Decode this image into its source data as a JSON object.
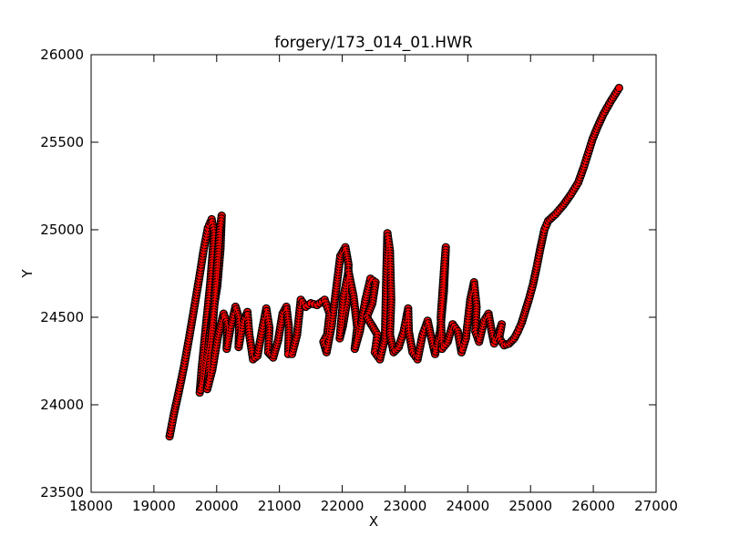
{
  "chart_data": {
    "type": "scatter",
    "title": "forgery/173_014_01.HWR",
    "xlabel": "X",
    "ylabel": "Y",
    "xlim": [
      18000,
      27000
    ],
    "ylim": [
      23500,
      26000
    ],
    "xticks": [
      "18000",
      "19000",
      "20000",
      "21000",
      "22000",
      "23000",
      "24000",
      "25000",
      "26000",
      "27000"
    ],
    "yticks": [
      "23500",
      "24000",
      "24500",
      "25000",
      "25500",
      "26000"
    ],
    "grid": false,
    "legend": "none",
    "colors": {
      "marker_fill": "#ff0000",
      "marker_edge": "#000000",
      "line": "#ff0000"
    },
    "series": [
      {
        "points": [
          [
            19250,
            23820
          ],
          [
            19320,
            23950
          ],
          [
            19400,
            24080
          ],
          [
            19480,
            24220
          ],
          [
            19560,
            24380
          ],
          [
            19640,
            24550
          ],
          [
            19720,
            24720
          ],
          [
            19790,
            24880
          ],
          [
            19860,
            25010
          ],
          [
            19920,
            25060
          ],
          [
            19960,
            24980
          ],
          [
            19900,
            24700
          ],
          [
            19820,
            24420
          ],
          [
            19760,
            24200
          ],
          [
            19730,
            24070
          ],
          [
            19790,
            24150
          ],
          [
            19860,
            24330
          ],
          [
            19930,
            24500
          ],
          [
            20010,
            24680
          ],
          [
            20060,
            24890
          ],
          [
            20080,
            25080
          ],
          [
            20050,
            25000
          ],
          [
            19990,
            24700
          ],
          [
            19930,
            24420
          ],
          [
            19870,
            24180
          ],
          [
            19850,
            24090
          ],
          [
            19930,
            24200
          ],
          [
            20020,
            24390
          ],
          [
            20110,
            24520
          ],
          [
            20170,
            24460
          ],
          [
            20160,
            24320
          ],
          [
            20220,
            24440
          ],
          [
            20300,
            24560
          ],
          [
            20360,
            24490
          ],
          [
            20350,
            24330
          ],
          [
            20420,
            24470
          ],
          [
            20490,
            24530
          ],
          [
            20520,
            24400
          ],
          [
            20580,
            24260
          ],
          [
            20650,
            24280
          ],
          [
            20720,
            24420
          ],
          [
            20790,
            24550
          ],
          [
            20840,
            24440
          ],
          [
            20820,
            24300
          ],
          [
            20900,
            24270
          ],
          [
            20980,
            24370
          ],
          [
            21050,
            24520
          ],
          [
            21110,
            24560
          ],
          [
            21150,
            24440
          ],
          [
            21140,
            24290
          ],
          [
            21200,
            24290
          ],
          [
            21280,
            24400
          ],
          [
            21340,
            24600
          ],
          [
            21420,
            24560
          ],
          [
            21500,
            24580
          ],
          [
            21600,
            24570
          ],
          [
            21720,
            24600
          ],
          [
            21800,
            24520
          ],
          [
            21760,
            24400
          ],
          [
            21700,
            24360
          ],
          [
            21750,
            24300
          ],
          [
            21830,
            24450
          ],
          [
            21900,
            24650
          ],
          [
            21970,
            24850
          ],
          [
            22050,
            24900
          ],
          [
            22100,
            24800
          ],
          [
            22080,
            24600
          ],
          [
            22010,
            24450
          ],
          [
            21960,
            24380
          ],
          [
            22020,
            24620
          ],
          [
            22100,
            24760
          ],
          [
            22180,
            24620
          ],
          [
            22240,
            24440
          ],
          [
            22200,
            24320
          ],
          [
            22280,
            24420
          ],
          [
            22370,
            24600
          ],
          [
            22450,
            24720
          ],
          [
            22530,
            24700
          ],
          [
            22480,
            24580
          ],
          [
            22390,
            24500
          ],
          [
            22480,
            24450
          ],
          [
            22560,
            24400
          ],
          [
            22520,
            24300
          ],
          [
            22600,
            24260
          ],
          [
            22680,
            24380
          ],
          [
            22700,
            24700
          ],
          [
            22720,
            24980
          ],
          [
            22760,
            24880
          ],
          [
            22780,
            24600
          ],
          [
            22760,
            24400
          ],
          [
            22820,
            24300
          ],
          [
            22900,
            24330
          ],
          [
            22980,
            24420
          ],
          [
            23050,
            24550
          ],
          [
            23060,
            24420
          ],
          [
            23120,
            24300
          ],
          [
            23200,
            24260
          ],
          [
            23280,
            24400
          ],
          [
            23360,
            24480
          ],
          [
            23420,
            24380
          ],
          [
            23480,
            24290
          ],
          [
            23560,
            24420
          ],
          [
            23620,
            24650
          ],
          [
            23650,
            24900
          ],
          [
            23620,
            24760
          ],
          [
            23570,
            24500
          ],
          [
            23590,
            24320
          ],
          [
            23680,
            24360
          ],
          [
            23760,
            24460
          ],
          [
            23840,
            24420
          ],
          [
            23900,
            24300
          ],
          [
            23970,
            24380
          ],
          [
            24040,
            24600
          ],
          [
            24100,
            24700
          ],
          [
            24140,
            24560
          ],
          [
            24120,
            24420
          ],
          [
            24180,
            24360
          ],
          [
            24260,
            24480
          ],
          [
            24330,
            24520
          ],
          [
            24380,
            24420
          ],
          [
            24420,
            24350
          ],
          [
            24480,
            24400
          ],
          [
            24540,
            24460
          ],
          [
            24500,
            24380
          ],
          [
            24580,
            24340
          ],
          [
            24660,
            24350
          ],
          [
            24740,
            24380
          ],
          [
            24800,
            24420
          ],
          [
            24860,
            24470
          ],
          [
            24920,
            24540
          ],
          [
            24980,
            24610
          ],
          [
            25040,
            24690
          ],
          [
            25100,
            24790
          ],
          [
            25160,
            24900
          ],
          [
            25220,
            25000
          ],
          [
            25280,
            25050
          ],
          [
            25400,
            25090
          ],
          [
            25520,
            25140
          ],
          [
            25640,
            25200
          ],
          [
            25760,
            25270
          ],
          [
            25850,
            25360
          ],
          [
            25920,
            25440
          ],
          [
            25990,
            25520
          ],
          [
            26070,
            25590
          ],
          [
            26160,
            25660
          ],
          [
            26270,
            25730
          ],
          [
            26410,
            25810
          ]
        ]
      }
    ]
  }
}
